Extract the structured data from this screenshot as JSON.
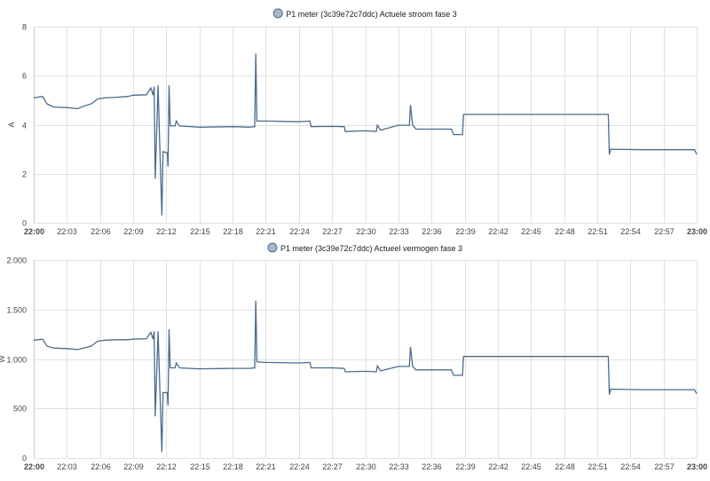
{
  "page": {
    "background": "#ffffff"
  },
  "chart_data": [
    {
      "type": "line",
      "series_name": "P1 meter (3c39e72c7ddc) Actuele stroom fase 3",
      "ylabel": "A",
      "ylim": [
        0,
        8
      ],
      "yticks": [
        0,
        2,
        4,
        6,
        8
      ],
      "ytick_labels": [
        "0",
        "2",
        "4",
        "6",
        "8"
      ],
      "xlim_minutes": [
        0,
        60
      ],
      "xtick_labels": [
        "22:00",
        "22:03",
        "22:06",
        "22:09",
        "22:12",
        "22:15",
        "22:18",
        "22:21",
        "22:24",
        "22:27",
        "22:30",
        "22:33",
        "22:36",
        "22:39",
        "22:42",
        "22:45",
        "22:48",
        "22:51",
        "22:54",
        "22:57",
        "23:00"
      ],
      "color": "#4a6b8c",
      "grid": true,
      "legend": "top-center",
      "points": [
        [
          0,
          5.1
        ],
        [
          0.8,
          5.15
        ],
        [
          1.2,
          4.85
        ],
        [
          1.8,
          4.72
        ],
        [
          3,
          4.7
        ],
        [
          4,
          4.65
        ],
        [
          4.5,
          4.75
        ],
        [
          5.2,
          4.85
        ],
        [
          5.8,
          5.05
        ],
        [
          6.5,
          5.1
        ],
        [
          7.5,
          5.12
        ],
        [
          8.5,
          5.15
        ],
        [
          9,
          5.2
        ],
        [
          10.2,
          5.22
        ],
        [
          10.6,
          5.5
        ],
        [
          10.8,
          5.2
        ],
        [
          10.9,
          5.55
        ],
        [
          11.0,
          1.8
        ],
        [
          11.1,
          3.3
        ],
        [
          11.25,
          5.6
        ],
        [
          11.4,
          3.3
        ],
        [
          11.6,
          0.3
        ],
        [
          11.7,
          2.9
        ],
        [
          12.1,
          2.85
        ],
        [
          12.15,
          2.3
        ],
        [
          12.25,
          5.6
        ],
        [
          12.35,
          3.95
        ],
        [
          12.8,
          3.95
        ],
        [
          12.9,
          4.15
        ],
        [
          13.2,
          3.95
        ],
        [
          15,
          3.9
        ],
        [
          18,
          3.92
        ],
        [
          19.5,
          3.9
        ],
        [
          20,
          3.92
        ],
        [
          20.1,
          6.9
        ],
        [
          20.2,
          4.15
        ],
        [
          21,
          4.15
        ],
        [
          24,
          4.12
        ],
        [
          25,
          4.15
        ],
        [
          25.1,
          3.92
        ],
        [
          27,
          3.93
        ],
        [
          28.1,
          3.92
        ],
        [
          28.2,
          3.72
        ],
        [
          30,
          3.75
        ],
        [
          31,
          3.72
        ],
        [
          31.1,
          3.98
        ],
        [
          31.4,
          3.78
        ],
        [
          33,
          3.98
        ],
        [
          34,
          3.98
        ],
        [
          34.1,
          4.8
        ],
        [
          34.3,
          3.98
        ],
        [
          34.6,
          3.82
        ],
        [
          37,
          3.82
        ],
        [
          37.8,
          3.82
        ],
        [
          38,
          3.6
        ],
        [
          38.8,
          3.6
        ],
        [
          38.9,
          4.42
        ],
        [
          52,
          4.42
        ],
        [
          52.1,
          2.78
        ],
        [
          52.2,
          3.0
        ],
        [
          55,
          2.98
        ],
        [
          59.8,
          2.98
        ],
        [
          60,
          2.8
        ]
      ]
    },
    {
      "type": "line",
      "series_name": "P1 meter (3c39e72c7ddc) Actueel vermogen fase 3",
      "ylabel": "W",
      "ylim": [
        0,
        2000
      ],
      "yticks": [
        0,
        500,
        1000,
        1500,
        2000
      ],
      "ytick_labels": [
        "0",
        "500",
        "1.000",
        "1.500",
        "2.000"
      ],
      "xlim_minutes": [
        0,
        60
      ],
      "xtick_labels": [
        "22:00",
        "22:03",
        "22:06",
        "22:09",
        "22:12",
        "22:15",
        "22:18",
        "22:21",
        "22:24",
        "22:27",
        "22:30",
        "22:33",
        "22:36",
        "22:39",
        "22:42",
        "22:45",
        "22:48",
        "22:51",
        "22:54",
        "22:57",
        "23:00"
      ],
      "color": "#4a6b8c",
      "grid": true,
      "legend": "top-center",
      "points": [
        [
          0,
          1190
        ],
        [
          0.8,
          1200
        ],
        [
          1.2,
          1130
        ],
        [
          1.8,
          1110
        ],
        [
          3,
          1105
        ],
        [
          4,
          1095
        ],
        [
          4.5,
          1110
        ],
        [
          5.2,
          1130
        ],
        [
          5.8,
          1180
        ],
        [
          6.5,
          1190
        ],
        [
          7.5,
          1195
        ],
        [
          8.5,
          1195
        ],
        [
          9,
          1200
        ],
        [
          10.2,
          1205
        ],
        [
          10.6,
          1270
        ],
        [
          10.8,
          1200
        ],
        [
          10.9,
          1280
        ],
        [
          11.0,
          420
        ],
        [
          11.1,
          760
        ],
        [
          11.25,
          1280
        ],
        [
          11.4,
          760
        ],
        [
          11.6,
          60
        ],
        [
          11.7,
          660
        ],
        [
          12.1,
          660
        ],
        [
          12.15,
          530
        ],
        [
          12.25,
          1300
        ],
        [
          12.35,
          910
        ],
        [
          12.8,
          910
        ],
        [
          12.9,
          960
        ],
        [
          13.2,
          910
        ],
        [
          15,
          900
        ],
        [
          18,
          905
        ],
        [
          19.5,
          905
        ],
        [
          20,
          910
        ],
        [
          20.1,
          1590
        ],
        [
          20.2,
          970
        ],
        [
          21,
          965
        ],
        [
          24,
          960
        ],
        [
          25,
          965
        ],
        [
          25.1,
          910
        ],
        [
          27,
          910
        ],
        [
          28.1,
          905
        ],
        [
          28.2,
          870
        ],
        [
          30,
          875
        ],
        [
          31,
          870
        ],
        [
          31.1,
          930
        ],
        [
          31.4,
          880
        ],
        [
          33,
          925
        ],
        [
          34,
          925
        ],
        [
          34.1,
          1120
        ],
        [
          34.3,
          925
        ],
        [
          34.6,
          890
        ],
        [
          37,
          890
        ],
        [
          37.8,
          890
        ],
        [
          38,
          835
        ],
        [
          38.8,
          835
        ],
        [
          38.9,
          1025
        ],
        [
          52,
          1025
        ],
        [
          52.1,
          640
        ],
        [
          52.2,
          695
        ],
        [
          55,
          690
        ],
        [
          59.8,
          690
        ],
        [
          60,
          650
        ]
      ]
    }
  ]
}
